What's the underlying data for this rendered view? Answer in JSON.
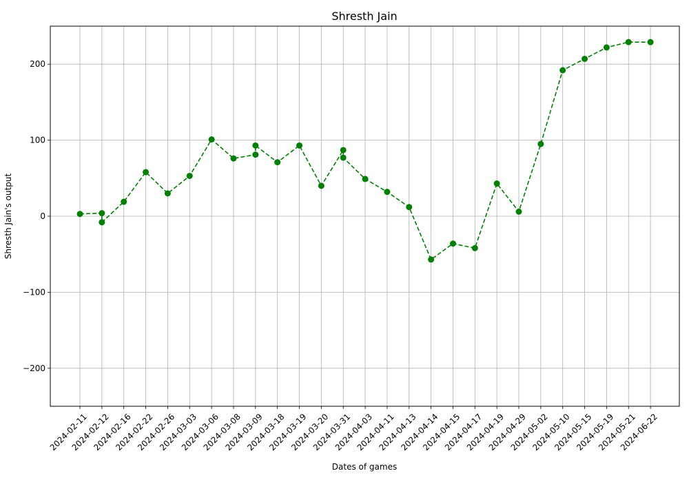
{
  "chart_data": {
    "type": "line",
    "title": "Shresth Jain",
    "xlabel": "Dates of games",
    "ylabel": "Shresth Jain's output",
    "categories": [
      "2024-02-11",
      "2024-02-12",
      "2024-02-16",
      "2024-02-22",
      "2024-02-26",
      "2024-03-03",
      "2024-03-06",
      "2024-03-08",
      "2024-03-09",
      "2024-03-18",
      "2024-03-19",
      "2024-03-20",
      "2024-03-31",
      "2024-04-03",
      "2024-04-11",
      "2024-04-13",
      "2024-04-14",
      "2024-04-15",
      "2024-04-17",
      "2024-04-19",
      "2024-04-29",
      "2024-05-02",
      "2024-05-10",
      "2024-05-15",
      "2024-05-19",
      "2024-05-21",
      "2024-06-22"
    ],
    "points": [
      {
        "x": "2024-02-11",
        "y": 3
      },
      {
        "x": "2024-02-12",
        "y": 4
      },
      {
        "x": "2024-02-12",
        "y": -8
      },
      {
        "x": "2024-02-16",
        "y": 19
      },
      {
        "x": "2024-02-22",
        "y": 58
      },
      {
        "x": "2024-02-26",
        "y": 30
      },
      {
        "x": "2024-03-03",
        "y": 53
      },
      {
        "x": "2024-03-06",
        "y": 101
      },
      {
        "x": "2024-03-08",
        "y": 76
      },
      {
        "x": "2024-03-09",
        "y": 81
      },
      {
        "x": "2024-03-09",
        "y": 93
      },
      {
        "x": "2024-03-18",
        "y": 71
      },
      {
        "x": "2024-03-19",
        "y": 93
      },
      {
        "x": "2024-03-20",
        "y": 40
      },
      {
        "x": "2024-03-31",
        "y": 87
      },
      {
        "x": "2024-03-31",
        "y": 77
      },
      {
        "x": "2024-04-03",
        "y": 49
      },
      {
        "x": "2024-04-11",
        "y": 32
      },
      {
        "x": "2024-04-13",
        "y": 12
      },
      {
        "x": "2024-04-14",
        "y": -57
      },
      {
        "x": "2024-04-15",
        "y": -36
      },
      {
        "x": "2024-04-17",
        "y": -42
      },
      {
        "x": "2024-04-19",
        "y": 43
      },
      {
        "x": "2024-04-29",
        "y": 6
      },
      {
        "x": "2024-05-02",
        "y": 95
      },
      {
        "x": "2024-05-10",
        "y": 192
      },
      {
        "x": "2024-05-15",
        "y": 207
      },
      {
        "x": "2024-05-19",
        "y": 222
      },
      {
        "x": "2024-05-21",
        "y": 229
      },
      {
        "x": "2024-06-22",
        "y": 229
      }
    ],
    "y_ticks": [
      {
        "value": -200,
        "label": "−200"
      },
      {
        "value": -100,
        "label": "−100"
      },
      {
        "value": 0,
        "label": "0"
      },
      {
        "value": 100,
        "label": "100"
      },
      {
        "value": 200,
        "label": "200"
      }
    ],
    "ylim": [
      -250,
      250
    ],
    "grid": true,
    "line_style": "dashed",
    "marker": "circle",
    "color": "#008000"
  }
}
